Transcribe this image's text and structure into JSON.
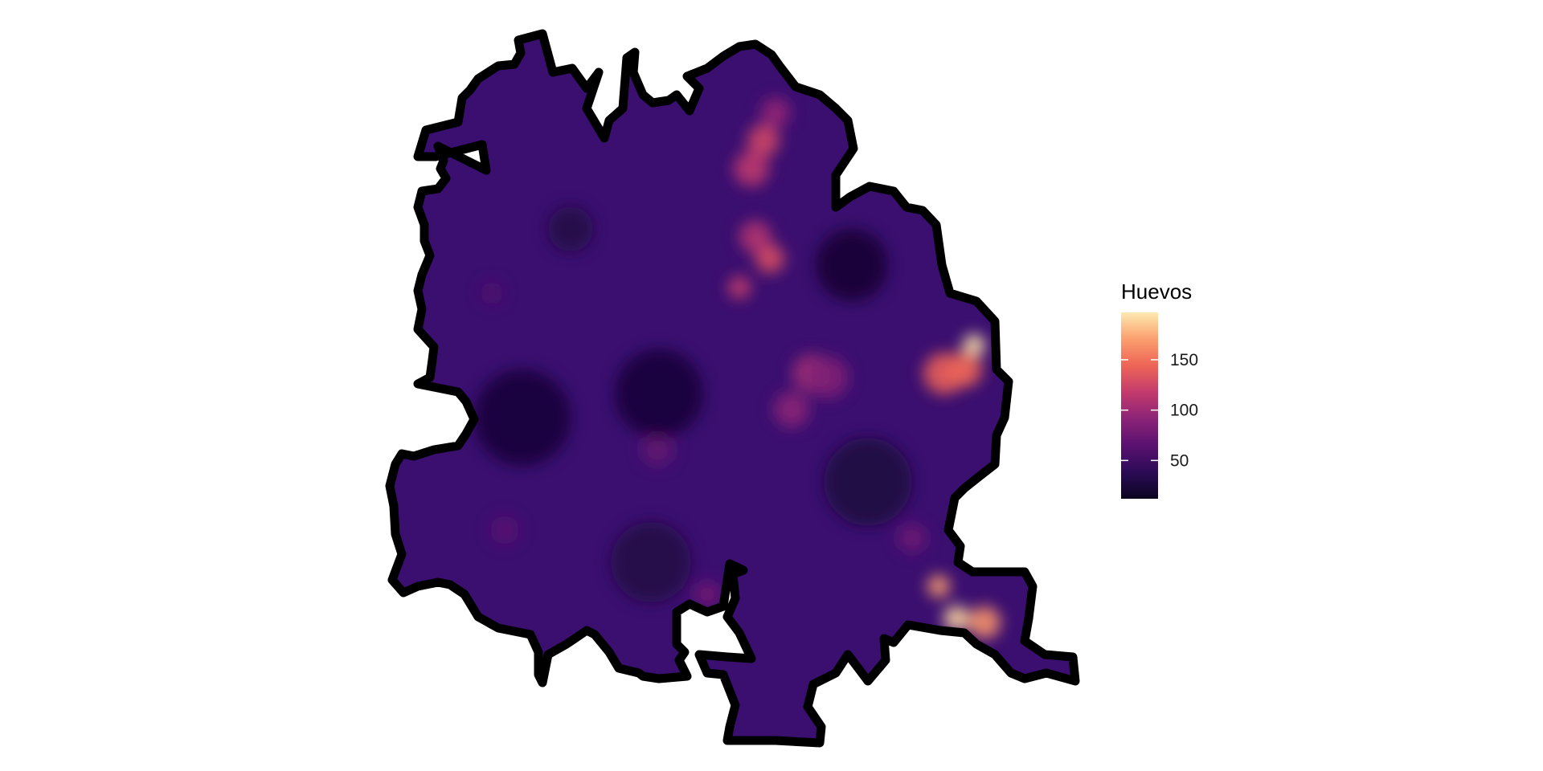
{
  "map": {
    "variable": "Huevos",
    "color_scale": "magma",
    "scale_colors": [
      "#0b0420",
      "#2c0b57",
      "#5a1170",
      "#8b2377",
      "#c33b6d",
      "#ee6456",
      "#fb9f6e",
      "#fde9b0"
    ],
    "background": "#ffffff",
    "boundary_color": "#000000",
    "hotspot_values": [
      195,
      190,
      170,
      165,
      140,
      145,
      120,
      130,
      110,
      125,
      115,
      95,
      100,
      90,
      85,
      80,
      75,
      70,
      65,
      60,
      30,
      25,
      25,
      28,
      30,
      22
    ]
  },
  "legend": {
    "title": "Huevos",
    "min": 12,
    "max": 197,
    "ticks": [
      {
        "value": 50,
        "label": "50"
      },
      {
        "value": 100,
        "label": "100"
      },
      {
        "value": 150,
        "label": "150"
      }
    ]
  }
}
